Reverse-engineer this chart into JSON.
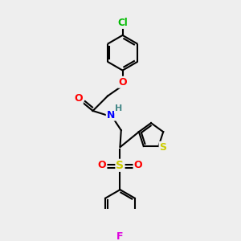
{
  "bg_color": "#eeeeee",
  "bond_color": "#000000",
  "bond_width": 1.5,
  "atoms": {
    "Cl": {
      "color": "#00bb00"
    },
    "O": {
      "color": "#ff0000"
    },
    "N": {
      "color": "#0000ff"
    },
    "H": {
      "color": "#448888"
    },
    "S_sulfonyl": {
      "color": "#cccc00"
    },
    "S_thiophene": {
      "color": "#cccc00"
    },
    "F": {
      "color": "#dd00dd"
    }
  },
  "figsize": [
    3.0,
    3.0
  ],
  "dpi": 100
}
